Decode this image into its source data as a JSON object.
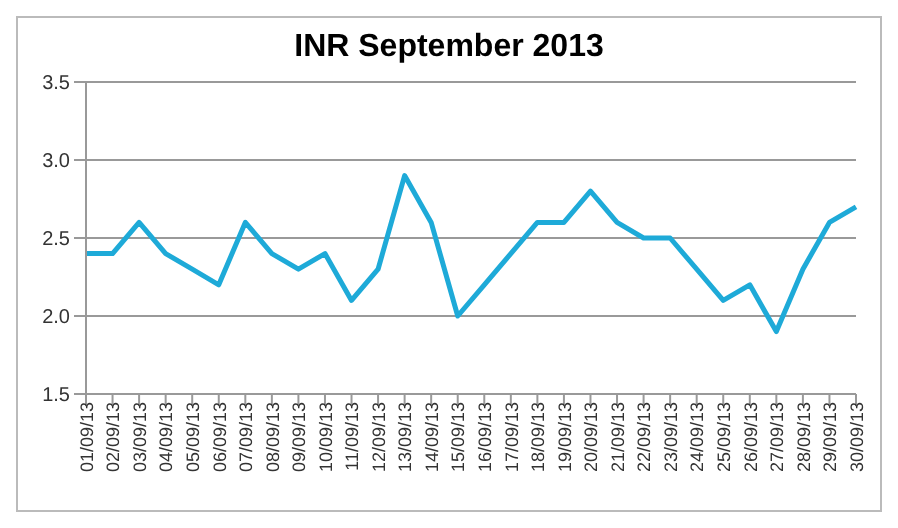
{
  "chart_data": {
    "type": "line",
    "title": "INR September 2013",
    "categories": [
      "01/09/13",
      "02/09/13",
      "03/09/13",
      "04/09/13",
      "05/09/13",
      "06/09/13",
      "07/09/13",
      "08/09/13",
      "09/09/13",
      "10/09/13",
      "11/09/13",
      "12/09/13",
      "13/09/13",
      "14/09/13",
      "15/09/13",
      "16/09/13",
      "17/09/13",
      "18/09/13",
      "19/09/13",
      "20/09/13",
      "21/09/13",
      "22/09/13",
      "23/09/13",
      "24/09/13",
      "25/09/13",
      "26/09/13",
      "27/09/13",
      "28/09/13",
      "29/09/13",
      "30/09/13"
    ],
    "series": [
      {
        "color": "#1eaad8",
        "values": [
          2.4,
          2.4,
          2.6,
          2.4,
          2.3,
          2.2,
          2.6,
          2.4,
          2.3,
          2.4,
          2.1,
          2.3,
          2.9,
          2.6,
          2.0,
          2.2,
          2.4,
          2.6,
          2.6,
          2.8,
          2.6,
          2.5,
          2.5,
          2.3,
          2.1,
          2.2,
          1.9,
          2.3,
          2.6,
          2.7
        ]
      }
    ],
    "ylim": [
      1.5,
      3.5
    ],
    "yticks": [
      {
        "value": 1.5,
        "label": "1.5"
      },
      {
        "value": 2,
        "label": "2.0"
      },
      {
        "value": 2.5,
        "label": "2.5"
      },
      {
        "value": 3,
        "label": "3.0"
      },
      {
        "value": 3.5,
        "label": "3.5"
      }
    ],
    "grid": "y",
    "legend": false,
    "marker": "none",
    "line_style": "solid"
  }
}
